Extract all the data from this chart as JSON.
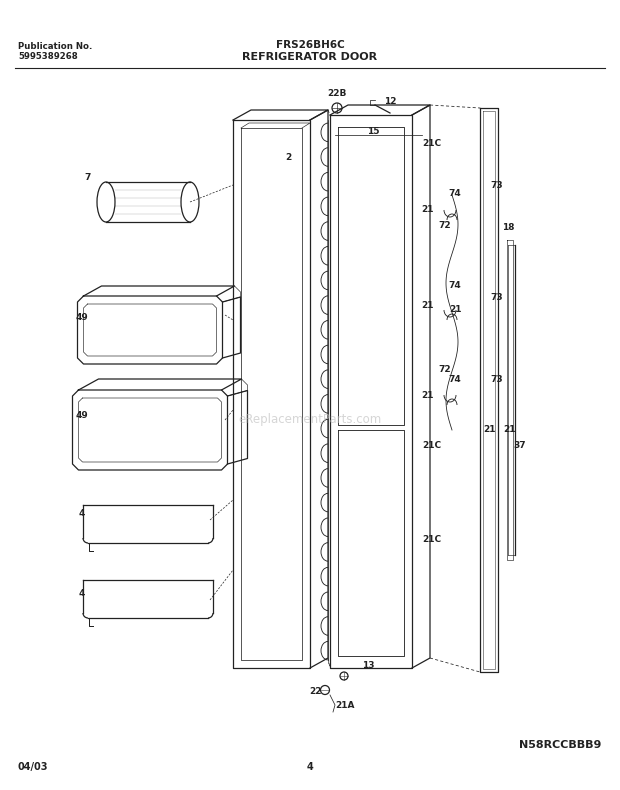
{
  "title_model": "FRS26BH6C",
  "title_diagram": "REFRIGERATOR DOOR",
  "pub_no_label": "Publication No.",
  "pub_no": "5995389268",
  "watermark": "eReplacementParts.com",
  "diagram_id": "N58RCCBBB9",
  "date": "04/03",
  "page": "4",
  "bg_color": "#ffffff",
  "line_color": "#222222"
}
